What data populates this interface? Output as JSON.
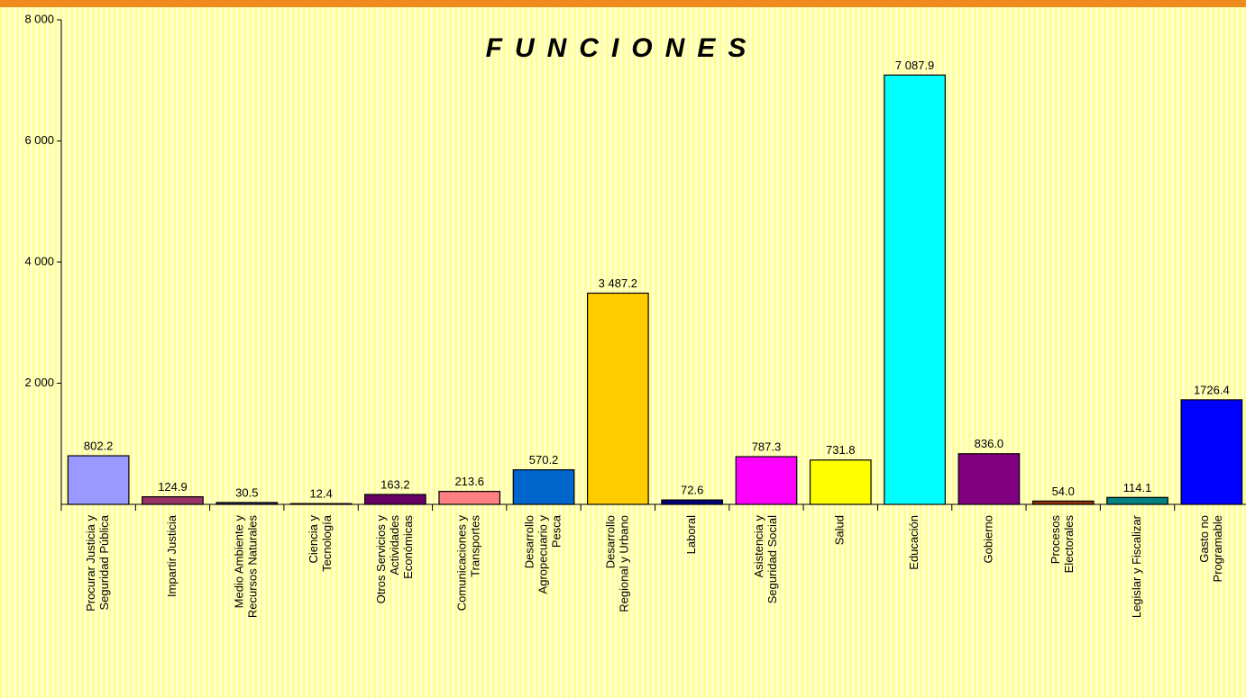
{
  "chart_data": {
    "type": "bar",
    "title": "FUNCIONES",
    "categories": [
      [
        "Procurar Justicia y",
        "Seguridad Pública"
      ],
      [
        "Impartir Justicia"
      ],
      [
        "Medio Ambiente y",
        "Recursos Naturales"
      ],
      [
        "Ciencia y",
        "Tecnología"
      ],
      [
        "Otros Servicios y",
        "Actividades",
        "Económicas"
      ],
      [
        "Comunicaciones y",
        "Transportes"
      ],
      [
        "Desarrollo",
        "Agropecuario y",
        "Pesca"
      ],
      [
        "Desarrollo",
        "Regional y Urbano"
      ],
      [
        "Laboral"
      ],
      [
        "Asistencia y",
        "Seguridad Social"
      ],
      [
        "Salud"
      ],
      [
        "Educación"
      ],
      [
        "Gobierno"
      ],
      [
        "Procesos",
        "Electorales"
      ],
      [
        "Legislar y Fiscalizar"
      ],
      [
        "Gasto no",
        "Programable"
      ]
    ],
    "values": [
      802.2,
      124.9,
      30.5,
      12.4,
      163.2,
      213.6,
      570.2,
      3487.2,
      72.6,
      787.3,
      731.8,
      7087.9,
      836.0,
      54.0,
      114.1,
      1726.4
    ],
    "value_labels": [
      "802.2",
      "124.9",
      "30.5",
      "12.4",
      "163.2",
      "213.6",
      "570.2",
      "3 487.2",
      "72.6",
      "787.3",
      "731.8",
      "7 087.9",
      "836.0",
      "54.0",
      "114.1",
      "1726.4"
    ],
    "colors": [
      "#9999ff",
      "#993366",
      "#333366",
      "#ffffcc",
      "#660066",
      "#ff8080",
      "#0066cc",
      "#ffcc00",
      "#000080",
      "#ff00ff",
      "#ffff00",
      "#00ffff",
      "#800080",
      "#993300",
      "#008080",
      "#0000ff"
    ],
    "ylim": [
      0,
      8000
    ],
    "yticks": [
      {
        "value": 2000,
        "label": "2 000"
      },
      {
        "value": 4000,
        "label": "4 000"
      },
      {
        "value": 6000,
        "label": "6 000"
      },
      {
        "value": 8000,
        "label": "8 000"
      }
    ]
  }
}
